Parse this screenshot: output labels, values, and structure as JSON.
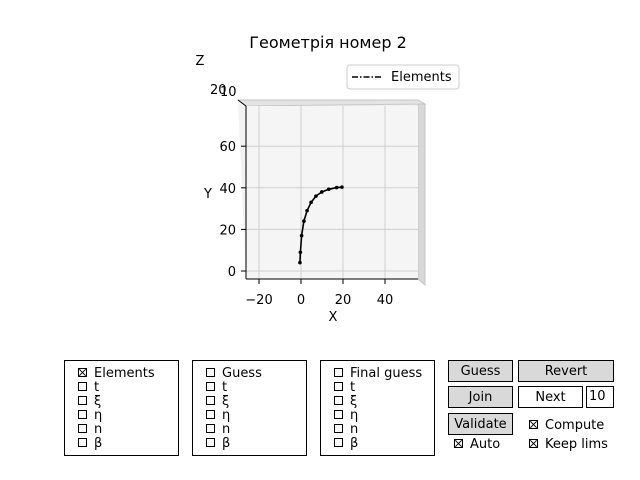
{
  "window": {
    "title": "Геометрія номер 2"
  },
  "chart_data": {
    "type": "line3d",
    "title": "Геометрія номер 2",
    "xlabel": "X",
    "ylabel": "Y",
    "zlabel": "Z",
    "x_ticks": [
      "−20",
      "0",
      "20",
      "40"
    ],
    "y_ticks": [
      "0",
      "20",
      "40",
      "60"
    ],
    "z_ticks": [
      "20",
      "10"
    ],
    "grid": true,
    "legend": {
      "position": "top-right",
      "entries": [
        "Elements"
      ]
    },
    "series": [
      {
        "name": "Elements",
        "x": [
          -0.5,
          -0.3,
          0.3,
          1.4,
          2.9,
          4.8,
          7.1,
          9.9,
          13.2,
          17.0,
          19.5
        ],
        "y": [
          4,
          9,
          17,
          24,
          29,
          33,
          36,
          38,
          39.3,
          40.1,
          40.3
        ]
      }
    ]
  },
  "panels": [
    {
      "items": [
        {
          "label": "Elements",
          "checked": true
        },
        {
          "label": "t",
          "checked": false
        },
        {
          "label": "ξ",
          "checked": false
        },
        {
          "label": "η",
          "checked": false
        },
        {
          "label": "n",
          "checked": false
        },
        {
          "label": "β",
          "checked": false
        }
      ]
    },
    {
      "items": [
        {
          "label": "Guess",
          "checked": false
        },
        {
          "label": "t",
          "checked": false
        },
        {
          "label": "ξ",
          "checked": false
        },
        {
          "label": "η",
          "checked": false
        },
        {
          "label": "n",
          "checked": false
        },
        {
          "label": "β",
          "checked": false
        }
      ]
    },
    {
      "items": [
        {
          "label": "Final guess",
          "checked": false
        },
        {
          "label": "t",
          "checked": false
        },
        {
          "label": "ξ",
          "checked": false
        },
        {
          "label": "η",
          "checked": false
        },
        {
          "label": "n",
          "checked": false
        },
        {
          "label": "β",
          "checked": false
        }
      ]
    }
  ],
  "controls": {
    "guess_label": "Guess",
    "revert_label": "Revert",
    "join_label": "Join",
    "next_label": "Next",
    "count_value": "10",
    "validate_label": "Validate",
    "auto": {
      "label": "Auto",
      "checked": true
    },
    "compute": {
      "label": "Compute",
      "checked": true
    },
    "keep_lims": {
      "label": "Keep lims",
      "checked": true
    }
  }
}
